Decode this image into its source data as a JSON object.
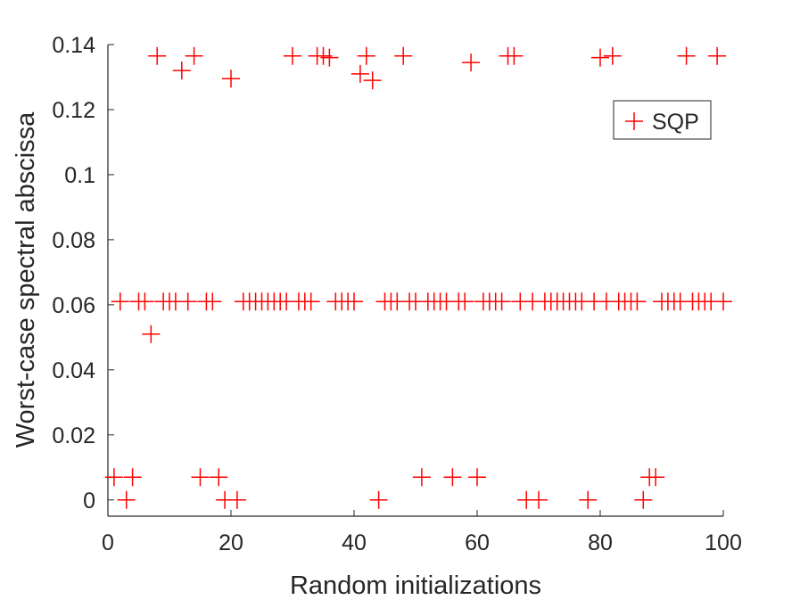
{
  "chart_data": {
    "type": "scatter",
    "title": "",
    "xlabel": "Random initializations",
    "ylabel": "Worst-case spectral abscissa",
    "xlim": [
      0,
      100
    ],
    "ylim": [
      -0.005,
      0.14
    ],
    "xticks": [
      0,
      20,
      40,
      60,
      80,
      100
    ],
    "xtick_labels": [
      "0",
      "20",
      "40",
      "60",
      "80",
      "100"
    ],
    "yticks": [
      0,
      0.02,
      0.04,
      0.06,
      0.08,
      0.1,
      0.12,
      0.14
    ],
    "ytick_labels": [
      "0",
      "0.02",
      "0.04",
      "0.06",
      "0.08",
      "0.1",
      "0.12",
      "0.14"
    ],
    "grid": false,
    "legend_position": "top-right",
    "series": [
      {
        "name": "SQP",
        "color": "#ff0000",
        "marker": "plus",
        "points": [
          [
            1,
            0.007
          ],
          [
            2,
            0.061
          ],
          [
            3,
            0.0
          ],
          [
            4,
            0.007
          ],
          [
            5,
            0.061
          ],
          [
            6,
            0.061
          ],
          [
            7,
            0.051
          ],
          [
            8,
            0.1365
          ],
          [
            9,
            0.061
          ],
          [
            10,
            0.061
          ],
          [
            11,
            0.061
          ],
          [
            12,
            0.132
          ],
          [
            13,
            0.061
          ],
          [
            14,
            0.1365
          ],
          [
            15,
            0.007
          ],
          [
            16,
            0.061
          ],
          [
            17,
            0.061
          ],
          [
            18,
            0.007
          ],
          [
            19,
            0.0
          ],
          [
            20,
            0.1295
          ],
          [
            21,
            0.0
          ],
          [
            22,
            0.061
          ],
          [
            23,
            0.061
          ],
          [
            24,
            0.061
          ],
          [
            25,
            0.061
          ],
          [
            26,
            0.061
          ],
          [
            27,
            0.061
          ],
          [
            28,
            0.061
          ],
          [
            29,
            0.061
          ],
          [
            30,
            0.1365
          ],
          [
            31,
            0.061
          ],
          [
            32,
            0.061
          ],
          [
            33,
            0.061
          ],
          [
            34,
            0.1365
          ],
          [
            35,
            0.1365
          ],
          [
            36,
            0.136
          ],
          [
            37,
            0.061
          ],
          [
            38,
            0.061
          ],
          [
            39,
            0.061
          ],
          [
            40,
            0.061
          ],
          [
            41,
            0.131
          ],
          [
            42,
            0.1365
          ],
          [
            43,
            0.129
          ],
          [
            44,
            0.0
          ],
          [
            45,
            0.061
          ],
          [
            46,
            0.061
          ],
          [
            47,
            0.061
          ],
          [
            48,
            0.1365
          ],
          [
            49,
            0.061
          ],
          [
            50,
            0.061
          ],
          [
            51,
            0.007
          ],
          [
            52,
            0.061
          ],
          [
            53,
            0.061
          ],
          [
            54,
            0.061
          ],
          [
            55,
            0.061
          ],
          [
            56,
            0.007
          ],
          [
            57,
            0.061
          ],
          [
            58,
            0.061
          ],
          [
            59,
            0.1345
          ],
          [
            60,
            0.007
          ],
          [
            61,
            0.061
          ],
          [
            62,
            0.061
          ],
          [
            63,
            0.061
          ],
          [
            64,
            0.061
          ],
          [
            65,
            0.1365
          ],
          [
            66,
            0.1365
          ],
          [
            67,
            0.061
          ],
          [
            68,
            0.0
          ],
          [
            69,
            0.061
          ],
          [
            70,
            0.0
          ],
          [
            71,
            0.061
          ],
          [
            72,
            0.061
          ],
          [
            73,
            0.061
          ],
          [
            74,
            0.061
          ],
          [
            75,
            0.061
          ],
          [
            76,
            0.061
          ],
          [
            77,
            0.061
          ],
          [
            78,
            0.0
          ],
          [
            79,
            0.061
          ],
          [
            80,
            0.136
          ],
          [
            81,
            0.061
          ],
          [
            82,
            0.1365
          ],
          [
            83,
            0.061
          ],
          [
            84,
            0.061
          ],
          [
            85,
            0.061
          ],
          [
            86,
            0.061
          ],
          [
            87,
            0.0
          ],
          [
            88,
            0.007
          ],
          [
            89,
            0.007
          ],
          [
            90,
            0.061
          ],
          [
            91,
            0.061
          ],
          [
            92,
            0.061
          ],
          [
            93,
            0.061
          ],
          [
            94,
            0.1365
          ],
          [
            95,
            0.061
          ],
          [
            96,
            0.061
          ],
          [
            97,
            0.061
          ],
          [
            98,
            0.061
          ],
          [
            99,
            0.1365
          ],
          [
            100,
            0.061
          ]
        ]
      }
    ]
  }
}
